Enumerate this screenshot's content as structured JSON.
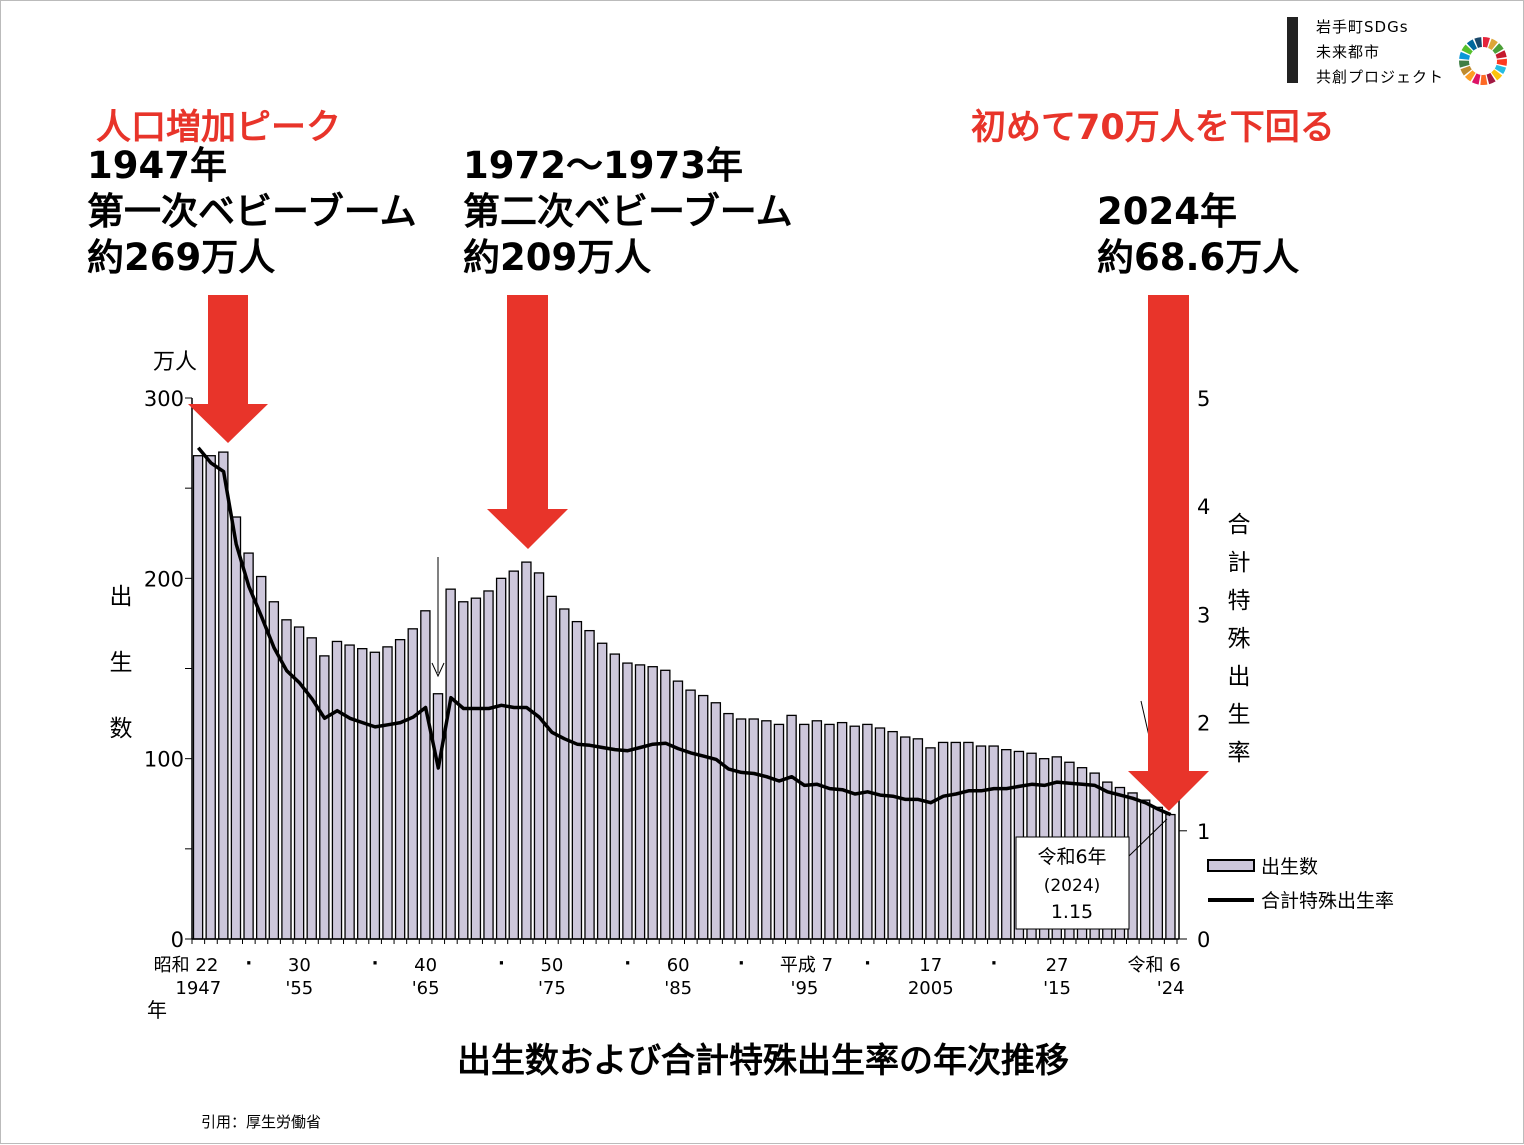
{
  "logo": {
    "lines": [
      "岩手町SDGs",
      "未来都市",
      "共創プロジェクト"
    ]
  },
  "annotations": {
    "peak_label": "人口増加ピーク",
    "first": {
      "year": "1947年",
      "name": "第一次ベビーブーム",
      "count": "約269万人"
    },
    "second": {
      "year": "1972〜1973年",
      "name": "第二次ベビーブーム",
      "count": "約209万人"
    },
    "below70_label": "初めて70万人を下回る",
    "latest": {
      "year": "2024年",
      "count": "約68.6万人"
    },
    "callout": {
      "era": "令和6年",
      "year": "(2024)",
      "value": "1.15"
    }
  },
  "footer": {
    "title": "出生数および合計特殊出生率の年次推移",
    "citation": "引用：厚生労働省"
  },
  "colors": {
    "accent_red": "#e8342a",
    "bar_fill": "#cdc7db"
  },
  "chart_data": {
    "type": "bar",
    "title": "出生数および合計特殊出生率の年次推移",
    "ylabel": "出生数",
    "yunit": "万人",
    "y2label": "合計特殊出生率",
    "xlabel": "年",
    "ylim": [
      0,
      300
    ],
    "y2lim": [
      0,
      5
    ],
    "yticks": [
      "0",
      "100",
      "200",
      "300"
    ],
    "y2ticks": [
      "0",
      "1",
      "2",
      "3",
      "4",
      "5"
    ],
    "xtick_labels": [
      {
        "era": "昭和 22",
        "year": "1947"
      },
      {
        "era": "30",
        "year": "'55"
      },
      {
        "era": "40",
        "year": "'65"
      },
      {
        "era": "50",
        "year": "'75"
      },
      {
        "era": "60",
        "year": "'85"
      },
      {
        "era": "平成 7",
        "year": "'95"
      },
      {
        "era": "17",
        "year": "2005"
      },
      {
        "era": "27",
        "year": "'15"
      },
      {
        "era": "令和 6",
        "year": "'24"
      }
    ],
    "legend": [
      "出生数",
      "合計特殊出生率"
    ],
    "legend_position": "right",
    "years_start": 1947,
    "series": [
      {
        "name": "出生数",
        "type": "bar",
        "values": [
          268,
          268,
          270,
          234,
          214,
          201,
          187,
          177,
          173,
          167,
          157,
          165,
          163,
          161,
          159,
          162,
          166,
          172,
          182,
          136,
          194,
          187,
          189,
          193,
          200,
          204,
          209,
          203,
          190,
          183,
          176,
          171,
          164,
          158,
          153,
          152,
          151,
          149,
          143,
          138,
          135,
          131,
          125,
          122,
          122,
          121,
          119,
          124,
          119,
          121,
          119,
          120,
          118,
          119,
          117,
          115,
          112,
          111,
          106,
          109,
          109,
          109,
          107,
          107,
          105,
          104,
          103,
          100,
          101,
          98,
          95,
          92,
          87,
          84,
          81,
          77,
          73,
          69
        ]
      },
      {
        "name": "合計特殊出生率",
        "type": "line",
        "values": [
          4.54,
          4.4,
          4.32,
          3.65,
          3.26,
          2.98,
          2.69,
          2.48,
          2.37,
          2.22,
          2.04,
          2.11,
          2.04,
          2.0,
          1.96,
          1.98,
          2.0,
          2.05,
          2.14,
          1.58,
          2.23,
          2.13,
          2.13,
          2.13,
          2.16,
          2.14,
          2.14,
          2.05,
          1.91,
          1.85,
          1.8,
          1.79,
          1.77,
          1.75,
          1.74,
          1.77,
          1.8,
          1.81,
          1.76,
          1.72,
          1.69,
          1.66,
          1.57,
          1.54,
          1.53,
          1.5,
          1.46,
          1.5,
          1.42,
          1.43,
          1.39,
          1.38,
          1.34,
          1.36,
          1.33,
          1.32,
          1.29,
          1.29,
          1.26,
          1.32,
          1.34,
          1.37,
          1.37,
          1.39,
          1.39,
          1.41,
          1.43,
          1.42,
          1.45,
          1.44,
          1.43,
          1.42,
          1.36,
          1.33,
          1.3,
          1.26,
          1.2,
          1.15
        ]
      }
    ]
  }
}
